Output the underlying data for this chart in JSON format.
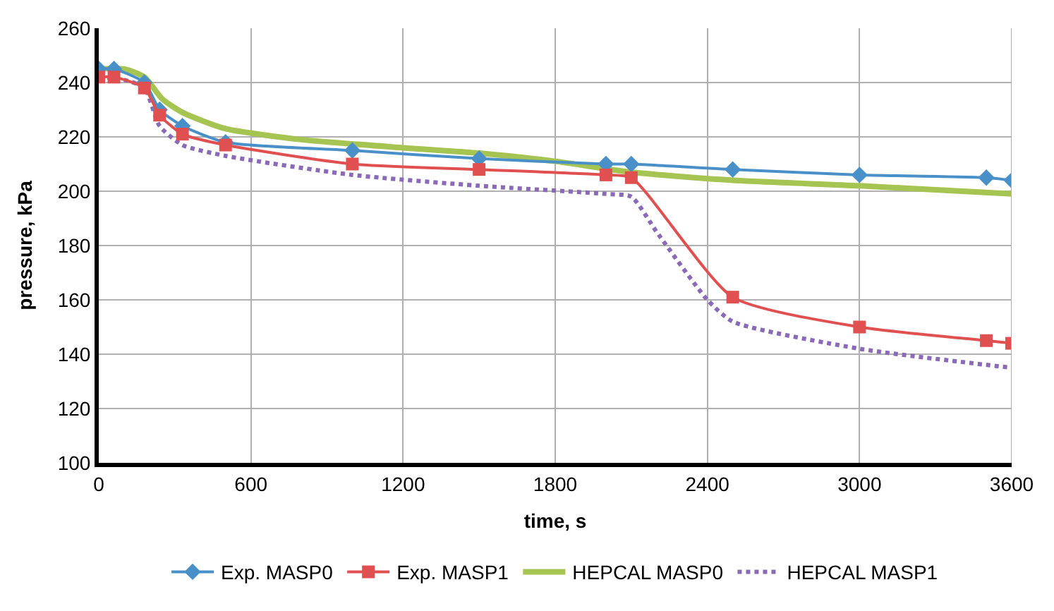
{
  "chart_data": {
    "type": "line",
    "xlabel": "time, s",
    "ylabel": "pressure, kPa",
    "xlim": [
      0,
      3600
    ],
    "xticks": [
      0,
      600,
      1200,
      1800,
      2400,
      3000,
      3600
    ],
    "ylim": [
      100,
      260
    ],
    "yticks": [
      100,
      120,
      140,
      160,
      180,
      200,
      220,
      240,
      260
    ],
    "grid": true,
    "legend": "bottom",
    "series": [
      {
        "name": "Exp. MASP0",
        "color": "#4a90c8",
        "marker": "diamond",
        "line_style": "solid",
        "x": [
          0,
          60,
          180,
          240,
          330,
          500,
          1000,
          1500,
          2000,
          2100,
          2500,
          3000,
          3500,
          3600
        ],
        "values": [
          245,
          245,
          240,
          230,
          224,
          218,
          215,
          212,
          210,
          210,
          208,
          206,
          205,
          204
        ]
      },
      {
        "name": "Exp. MASP1",
        "color": "#e05050",
        "marker": "square",
        "line_style": "solid",
        "x": [
          0,
          60,
          180,
          240,
          330,
          500,
          1000,
          1500,
          2000,
          2100,
          2500,
          3000,
          3500,
          3600
        ],
        "values": [
          242,
          242,
          238,
          228,
          221,
          217,
          210,
          208,
          206,
          205,
          161,
          150,
          145,
          144
        ]
      },
      {
        "name": "HEPCAL MASP0",
        "color": "#a6c451",
        "marker": "none",
        "line_style": "solid",
        "x": [
          0,
          100,
          180,
          250,
          330,
          500,
          800,
          1200,
          1500,
          1800,
          2100,
          2500,
          3000,
          3600
        ],
        "values": [
          245,
          245,
          242,
          234,
          229,
          223,
          219,
          216,
          214,
          211,
          207,
          204,
          202,
          199
        ]
      },
      {
        "name": "HEPCAL MASP1",
        "color": "#8a6ab8",
        "marker": "none",
        "line_style": "dotted",
        "x": [
          0,
          100,
          180,
          240,
          330,
          500,
          1000,
          1500,
          2000,
          2100,
          2200,
          2400,
          2500,
          3000,
          3600
        ],
        "values": [
          242,
          241,
          238,
          224,
          217,
          213,
          206,
          202,
          199,
          198,
          185,
          160,
          152,
          142,
          135
        ]
      }
    ]
  }
}
